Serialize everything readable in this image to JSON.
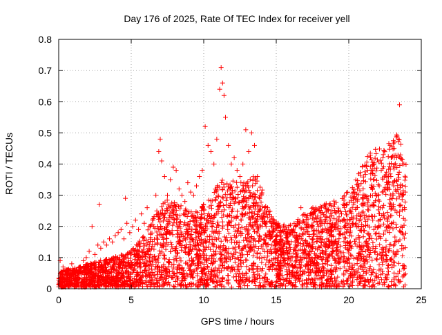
{
  "chart_data": {
    "type": "scatter",
    "title": "Day 176 of 2025, Rate Of TEC Index for receiver yell",
    "xlabel": "GPS time / hours",
    "ylabel": "ROTI / TECUs",
    "xlim": [
      0,
      25
    ],
    "ylim": [
      0,
      0.8
    ],
    "xticks": [
      0,
      5,
      10,
      15,
      20,
      25
    ],
    "yticks": [
      0,
      0.1,
      0.2,
      0.3,
      0.4,
      0.5,
      0.6,
      0.7,
      0.8
    ],
    "xtick_labels": [
      "0",
      "5",
      "10",
      "15",
      "20",
      "25"
    ],
    "ytick_labels": [
      "0",
      "0.1",
      "0.2",
      "0.3",
      "0.4",
      "0.5",
      "0.6",
      "0.7",
      "0.8"
    ],
    "grid": true,
    "marker": "+",
    "color": "#ff0000",
    "series": [
      {
        "x": [
          0.1,
          0.3,
          0.5,
          0.7,
          0.9,
          1.1,
          1.3,
          1.5,
          1.7,
          1.9,
          2.1,
          2.3,
          2.5,
          2.7,
          2.8,
          2.9,
          3.1,
          3.3,
          3.5,
          3.7,
          3.9,
          4.1,
          4.3,
          4.5,
          4.6,
          4.7,
          4.9,
          5.1,
          5.3,
          5.5,
          5.7,
          5.9,
          6.1,
          6.3,
          6.5,
          6.7,
          6.9,
          7.0,
          7.1,
          7.3,
          7.5,
          7.7,
          7.9,
          8.1,
          8.3,
          8.5,
          8.7,
          8.9,
          9.1,
          9.3,
          9.5,
          9.7,
          9.9,
          10.1,
          10.3,
          10.5,
          10.7,
          10.9,
          11.1,
          11.2,
          11.3,
          11.4,
          11.5,
          11.7,
          11.9,
          12.1,
          12.3,
          12.5,
          12.7,
          12.9,
          13.1,
          13.3,
          13.5,
          13.7,
          13.9,
          14.1,
          14.3,
          14.5,
          14.7,
          14.9,
          15.1,
          15.3,
          15.5,
          15.7,
          15.9,
          16.1,
          16.3,
          16.5,
          16.7,
          16.9,
          17.1,
          17.3,
          17.5,
          17.7,
          17.9,
          18.1,
          18.3,
          18.5,
          18.7,
          18.9,
          19.1,
          19.3,
          19.5,
          19.7,
          19.9,
          20.1,
          20.3,
          20.5,
          20.7,
          20.9,
          21.1,
          21.3,
          21.5,
          21.7,
          21.9,
          22.1,
          22.3,
          22.5,
          22.7,
          22.9,
          23.1,
          23.3,
          23.4,
          23.5,
          23.7,
          23.9
        ],
        "y": [
          0.09,
          0.07,
          0.06,
          0.05,
          0.08,
          0.06,
          0.05,
          0.07,
          0.09,
          0.1,
          0.12,
          0.2,
          0.11,
          0.14,
          0.27,
          0.13,
          0.15,
          0.14,
          0.16,
          0.15,
          0.17,
          0.18,
          0.19,
          0.16,
          0.29,
          0.21,
          0.18,
          0.2,
          0.22,
          0.19,
          0.24,
          0.21,
          0.26,
          0.2,
          0.22,
          0.3,
          0.44,
          0.48,
          0.41,
          0.36,
          0.3,
          0.35,
          0.39,
          0.38,
          0.32,
          0.3,
          0.28,
          0.34,
          0.31,
          0.3,
          0.33,
          0.36,
          0.38,
          0.52,
          0.46,
          0.44,
          0.4,
          0.48,
          0.64,
          0.71,
          0.66,
          0.62,
          0.55,
          0.46,
          0.4,
          0.42,
          0.38,
          0.36,
          0.4,
          0.51,
          0.44,
          0.5,
          0.46,
          0.36,
          0.3,
          0.24,
          0.2,
          0.18,
          0.14,
          0.12,
          0.1,
          0.11,
          0.12,
          0.13,
          0.12,
          0.1,
          0.15,
          0.17,
          0.26,
          0.19,
          0.15,
          0.14,
          0.16,
          0.13,
          0.2,
          0.21,
          0.15,
          0.18,
          0.17,
          0.2,
          0.19,
          0.22,
          0.24,
          0.26,
          0.22,
          0.25,
          0.23,
          0.21,
          0.24,
          0.27,
          0.3,
          0.38,
          0.42,
          0.35,
          0.3,
          0.33,
          0.31,
          0.32,
          0.34,
          0.36,
          0.33,
          0.42,
          0.48,
          0.59,
          0.4,
          0.31
        ]
      }
    ]
  }
}
